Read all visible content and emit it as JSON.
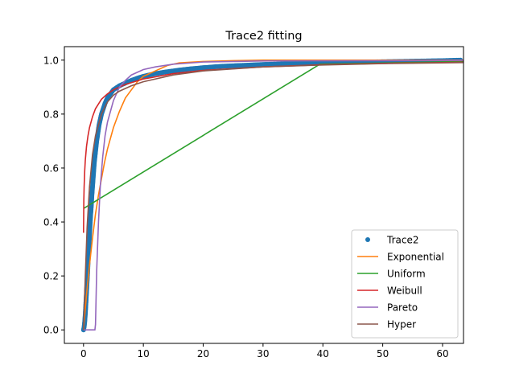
{
  "chart_data": {
    "type": "line",
    "title": "Trace2 fitting",
    "xlabel": "",
    "ylabel": "",
    "xlim": [
      -3.2,
      63.5
    ],
    "ylim": [
      -0.05,
      1.05
    ],
    "xticks": [
      0,
      10,
      20,
      30,
      40,
      50,
      60
    ],
    "yticks": [
      0.0,
      0.2,
      0.4,
      0.6,
      0.8,
      1.0
    ],
    "xtick_labels": [
      "0",
      "10",
      "20",
      "30",
      "40",
      "50",
      "60"
    ],
    "ytick_labels": [
      "0.0",
      "0.2",
      "0.4",
      "0.6",
      "0.8",
      "1.0"
    ],
    "grid": false,
    "legend_position": "lower-right",
    "series": [
      {
        "name": "Trace2",
        "kind": "scatter",
        "color": "#1f77b4",
        "points": [
          [
            0,
            0
          ],
          [
            0.1,
            0.01
          ],
          [
            0.2,
            0.03
          ],
          [
            0.3,
            0.06
          ],
          [
            0.4,
            0.1
          ],
          [
            0.5,
            0.14
          ],
          [
            0.6,
            0.18
          ],
          [
            0.7,
            0.22
          ],
          [
            0.8,
            0.27
          ],
          [
            0.9,
            0.31
          ],
          [
            1,
            0.35
          ],
          [
            1.1,
            0.39
          ],
          [
            1.2,
            0.43
          ],
          [
            1.3,
            0.46
          ],
          [
            1.4,
            0.5
          ],
          [
            1.5,
            0.53
          ],
          [
            1.6,
            0.56
          ],
          [
            1.7,
            0.59
          ],
          [
            1.8,
            0.62
          ],
          [
            1.9,
            0.64
          ],
          [
            2,
            0.66
          ],
          [
            2.2,
            0.7
          ],
          [
            2.4,
            0.73
          ],
          [
            2.6,
            0.76
          ],
          [
            2.8,
            0.78
          ],
          [
            3,
            0.8
          ],
          [
            3.3,
            0.82
          ],
          [
            3.6,
            0.84
          ],
          [
            4,
            0.86
          ],
          [
            4.5,
            0.875
          ],
          [
            5,
            0.89
          ],
          [
            6,
            0.905
          ],
          [
            7,
            0.915
          ],
          [
            8,
            0.925
          ],
          [
            9,
            0.933
          ],
          [
            10,
            0.94
          ],
          [
            12,
            0.95
          ],
          [
            14,
            0.957
          ],
          [
            16,
            0.963
          ],
          [
            18,
            0.968
          ],
          [
            20,
            0.972
          ],
          [
            23,
            0.977
          ],
          [
            26,
            0.98
          ],
          [
            30,
            0.984
          ],
          [
            35,
            0.987
          ],
          [
            40,
            0.99
          ],
          [
            45,
            0.992
          ],
          [
            50,
            0.994
          ],
          [
            55,
            0.996
          ],
          [
            60,
            0.998
          ],
          [
            63,
            1.0
          ]
        ]
      },
      {
        "name": "Exponential",
        "kind": "line",
        "color": "#ff7f0e",
        "points": [
          [
            0,
            0
          ],
          [
            0.5,
            0.13
          ],
          [
            1,
            0.24
          ],
          [
            1.5,
            0.34
          ],
          [
            2,
            0.43
          ],
          [
            2.5,
            0.5
          ],
          [
            3,
            0.56
          ],
          [
            3.5,
            0.62
          ],
          [
            4,
            0.67
          ],
          [
            5,
            0.75
          ],
          [
            6,
            0.81
          ],
          [
            7,
            0.86
          ],
          [
            8,
            0.89
          ],
          [
            9,
            0.92
          ],
          [
            10,
            0.94
          ],
          [
            12,
            0.96
          ],
          [
            14,
            0.98
          ],
          [
            16,
            0.99
          ],
          [
            20,
            0.995
          ],
          [
            25,
            0.998
          ],
          [
            30,
            1.0
          ],
          [
            63.5,
            1.0
          ]
        ]
      },
      {
        "name": "Uniform",
        "kind": "line",
        "color": "#2ca02c",
        "points": [
          [
            0,
            0.45
          ],
          [
            39.5,
            0.985
          ],
          [
            63.5,
            0.995
          ]
        ]
      },
      {
        "name": "Weibull",
        "kind": "line",
        "color": "#d62728",
        "points": [
          [
            0,
            0.36
          ],
          [
            0.05,
            0.48
          ],
          [
            0.1,
            0.53
          ],
          [
            0.2,
            0.59
          ],
          [
            0.3,
            0.63
          ],
          [
            0.5,
            0.68
          ],
          [
            0.75,
            0.72
          ],
          [
            1,
            0.75
          ],
          [
            1.5,
            0.79
          ],
          [
            2,
            0.82
          ],
          [
            3,
            0.855
          ],
          [
            4,
            0.875
          ],
          [
            5,
            0.89
          ],
          [
            7,
            0.91
          ],
          [
            10,
            0.93
          ],
          [
            15,
            0.95
          ],
          [
            20,
            0.962
          ],
          [
            30,
            0.975
          ],
          [
            40,
            0.983
          ],
          [
            50,
            0.988
          ],
          [
            63.5,
            0.992
          ]
        ]
      },
      {
        "name": "Pareto",
        "kind": "line",
        "color": "#9467bd",
        "points": [
          [
            0,
            0
          ],
          [
            1.9,
            0
          ],
          [
            2,
            0.02
          ],
          [
            2.2,
            0.22
          ],
          [
            2.5,
            0.4
          ],
          [
            2.8,
            0.53
          ],
          [
            3.2,
            0.64
          ],
          [
            3.6,
            0.72
          ],
          [
            4,
            0.77
          ],
          [
            5,
            0.85
          ],
          [
            6,
            0.9
          ],
          [
            7,
            0.925
          ],
          [
            8,
            0.945
          ],
          [
            10,
            0.965
          ],
          [
            12,
            0.975
          ],
          [
            15,
            0.985
          ],
          [
            20,
            0.993
          ],
          [
            30,
            0.997
          ],
          [
            63.5,
            0.999
          ]
        ]
      },
      {
        "name": "Hyper",
        "kind": "line",
        "color": "#8c564b",
        "points": [
          [
            0,
            0
          ],
          [
            0.3,
            0.2
          ],
          [
            0.6,
            0.38
          ],
          [
            1,
            0.53
          ],
          [
            1.5,
            0.65
          ],
          [
            2,
            0.72
          ],
          [
            3,
            0.8
          ],
          [
            4,
            0.845
          ],
          [
            5,
            0.87
          ],
          [
            6,
            0.885
          ],
          [
            8,
            0.905
          ],
          [
            10,
            0.92
          ],
          [
            15,
            0.945
          ],
          [
            20,
            0.96
          ],
          [
            30,
            0.975
          ],
          [
            40,
            0.982
          ],
          [
            50,
            0.987
          ],
          [
            63.5,
            0.991
          ]
        ]
      }
    ]
  }
}
